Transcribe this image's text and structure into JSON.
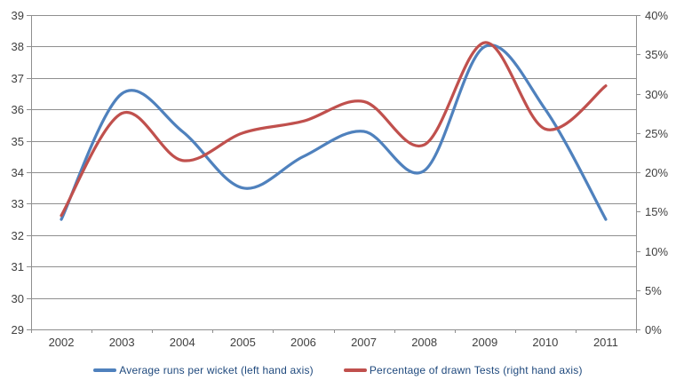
{
  "chart_data": {
    "type": "line",
    "categories": [
      "2002",
      "2003",
      "2004",
      "2005",
      "2006",
      "2007",
      "2008",
      "2009",
      "2010",
      "2011"
    ],
    "series": [
      {
        "name": "Average runs per wicket  (left hand axis)",
        "axis": "left",
        "color": "#4F81BD",
        "values": [
          32.5,
          36.5,
          35.3,
          33.5,
          34.5,
          35.3,
          34.05,
          38.0,
          36.0,
          32.5
        ]
      },
      {
        "name": "Percentage of drawn Tests  (right hand axis)",
        "axis": "right",
        "color": "#C0504D",
        "values": [
          14.5,
          27.5,
          21.5,
          25.0,
          26.5,
          29.0,
          23.5,
          36.5,
          25.5,
          31.0
        ]
      }
    ],
    "left_axis": {
      "min": 29,
      "max": 39,
      "step": 1,
      "tick_labels": [
        "29",
        "30",
        "31",
        "32",
        "33",
        "34",
        "35",
        "36",
        "37",
        "38",
        "39"
      ]
    },
    "right_axis": {
      "min": 0,
      "max": 40,
      "step": 5,
      "tick_labels": [
        "0%",
        "5%",
        "10%",
        "15%",
        "20%",
        "25%",
        "30%",
        "35%",
        "40%"
      ]
    },
    "title": "",
    "grid": true,
    "legend_position": "bottom",
    "smooth_lines": true
  },
  "colors": {
    "grid": "#8f8f8f",
    "axis": "#8f8f8f",
    "tick_text": "#404040",
    "legend_text": "#1F497D",
    "background": "#ffffff"
  }
}
